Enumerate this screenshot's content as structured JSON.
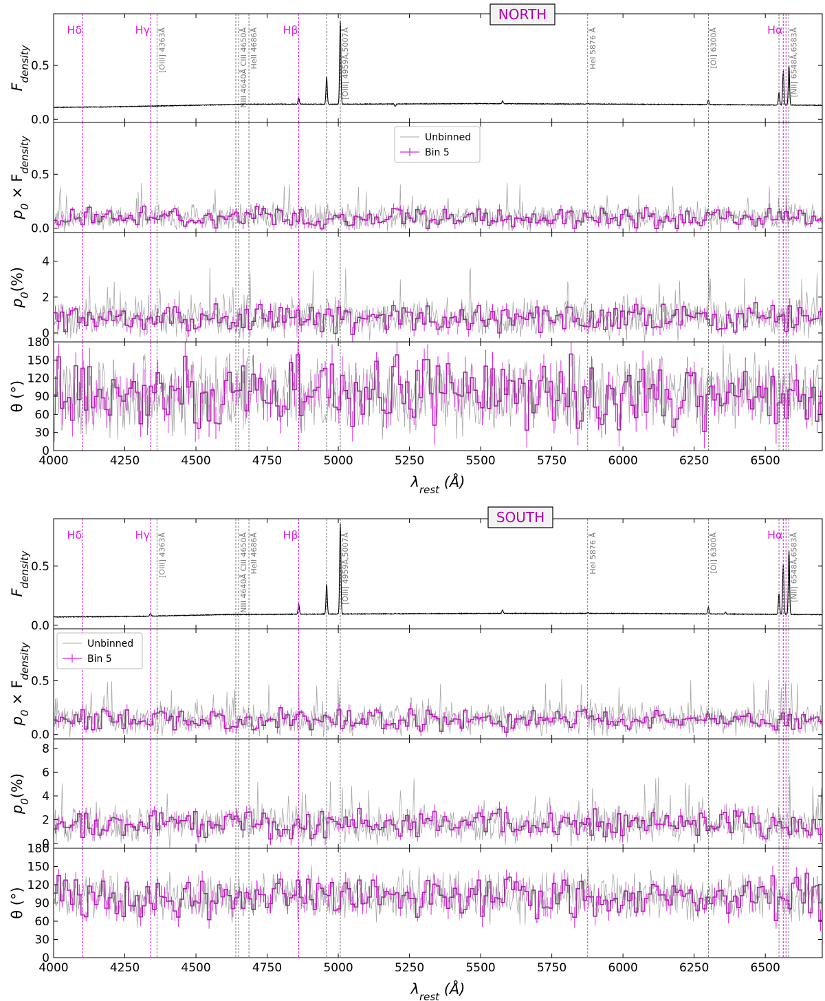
{
  "colors": {
    "flux": "#000000",
    "unbinned": "#a8a8a8",
    "binned": "#e020e0",
    "binned_edge": "#000000",
    "balmer": "#e020e0",
    "emission": "#555555",
    "title": "#b000b0"
  },
  "x_axis": {
    "label": "λ_rest (Å)",
    "range": [
      4000,
      6700
    ],
    "ticks": [
      4000,
      4250,
      4500,
      4750,
      5000,
      5250,
      5500,
      5750,
      6000,
      6250,
      6500
    ],
    "tick_labels": [
      "4000",
      "4250",
      "4500",
      "4750",
      "5000",
      "5250",
      "5500",
      "5750",
      "6000",
      "6250",
      "6500"
    ]
  },
  "balmer_lines": [
    {
      "name": "Hδ",
      "wavelength": 4102
    },
    {
      "name": "Hγ",
      "wavelength": 4341
    },
    {
      "name": "Hβ",
      "wavelength": 4861
    },
    {
      "name": "Hα",
      "wavelength": 6563
    }
  ],
  "emission_lines": [
    {
      "label": "[OIII] 4363Å",
      "wavelengths": [
        4363
      ]
    },
    {
      "label": "NIII 4640Å CIII 4650Å",
      "wavelengths": [
        4640,
        4650
      ]
    },
    {
      "label": "HeII 4686Å",
      "wavelengths": [
        4686
      ]
    },
    {
      "label": "[OIII] 4959Å,5007Å",
      "wavelengths": [
        4959,
        5007
      ]
    },
    {
      "label": "HeI 5876 Å",
      "wavelengths": [
        5876
      ]
    },
    {
      "label": "[OI] 6300Å",
      "wavelengths": [
        6300
      ]
    },
    {
      "label": "[NII] 6548Å,6583Å",
      "wavelengths": [
        6548,
        6583
      ]
    }
  ],
  "legend": {
    "unbinned": "Unbinned",
    "binned": "Bin 5"
  },
  "chart_data": [
    {
      "type": "line",
      "title": "NORTH",
      "x_range": [
        4000,
        6700
      ],
      "panels": [
        {
          "id": "flux",
          "ylabel": "F_density",
          "ylim": [
            -0.03,
            0.98
          ],
          "yticks": [
            0.0,
            0.5
          ],
          "ytick_labels": [
            "0.0",
            "0.5"
          ],
          "series": [
            {
              "name": "",
              "continuum": [
                [
                  4000,
                  0.11
                ],
                [
                  4200,
                  0.115
                ],
                [
                  4400,
                  0.125
                ],
                [
                  4700,
                  0.14
                ],
                [
                  5000,
                  0.14
                ],
                [
                  5500,
                  0.145
                ],
                [
                  6000,
                  0.14
                ],
                [
                  6700,
                  0.13
                ]
              ],
              "peaks": [
                [
                  4861,
                  0.2
                ],
                [
                  4959,
                  0.4
                ],
                [
                  5007,
                  0.92
                ],
                [
                  5200,
                  0.12
                ],
                [
                  5577,
                  0.17
                ],
                [
                  5876,
                  0.15
                ],
                [
                  6300,
                  0.18
                ],
                [
                  6548,
                  0.25
                ],
                [
                  6563,
                  0.45
                ],
                [
                  6583,
                  0.5
                ]
              ]
            }
          ]
        },
        {
          "id": "pflux",
          "ylabel": "p_0 × F_density",
          "ylim": [
            -0.04,
            0.98
          ],
          "yticks": [
            0.0,
            0.5
          ],
          "ytick_labels": [
            "0.0",
            "0.5"
          ],
          "legend_position": "top-center",
          "series": [
            {
              "name": "Unbinned",
              "level": 0.1,
              "spread": 0.1
            },
            {
              "name": "Bin 5",
              "level": 0.1,
              "spread": 0.07
            }
          ]
        },
        {
          "id": "p0",
          "ylabel": "p_0(%)",
          "ylim": [
            -0.5,
            5.6
          ],
          "yticks": [
            0,
            2,
            4
          ],
          "ytick_labels": [
            "0",
            "2",
            "4"
          ],
          "series": [
            {
              "name": "Unbinned",
              "level": 0.8,
              "spread": 0.9
            },
            {
              "name": "Bin 5",
              "level": 0.8,
              "spread": 0.6
            }
          ]
        },
        {
          "id": "theta",
          "ylabel": "θ (°)",
          "ylim": [
            0,
            180
          ],
          "yticks": [
            0,
            30,
            60,
            90,
            120,
            150,
            180
          ],
          "ytick_labels": [
            "0",
            "30",
            "60",
            "90",
            "120",
            "150",
            "180"
          ],
          "series": [
            {
              "name": "Unbinned",
              "level": 95,
              "spread": 55
            },
            {
              "name": "Bin 5",
              "level": 95,
              "spread": 45
            }
          ]
        }
      ]
    },
    {
      "type": "line",
      "title": "SOUTH",
      "x_range": [
        4000,
        6700
      ],
      "panels": [
        {
          "id": "flux",
          "ylabel": "F_density",
          "ylim": [
            -0.03,
            0.9
          ],
          "yticks": [
            0.0,
            0.5
          ],
          "ytick_labels": [
            "0.0",
            "0.5"
          ],
          "series": [
            {
              "name": "",
              "continuum": [
                [
                  4000,
                  0.07
                ],
                [
                  4300,
                  0.075
                ],
                [
                  4600,
                  0.09
                ],
                [
                  5000,
                  0.095
                ],
                [
                  5500,
                  0.1
                ],
                [
                  6000,
                  0.1
                ],
                [
                  6700,
                  0.09
                ]
              ],
              "peaks": [
                [
                  4340,
                  0.1
                ],
                [
                  4861,
                  0.18
                ],
                [
                  4959,
                  0.35
                ],
                [
                  5007,
                  0.86
                ],
                [
                  5200,
                  0.1
                ],
                [
                  5577,
                  0.13
                ],
                [
                  5876,
                  0.11
                ],
                [
                  6300,
                  0.15
                ],
                [
                  6360,
                  0.11
                ],
                [
                  6548,
                  0.27
                ],
                [
                  6563,
                  0.52
                ],
                [
                  6583,
                  0.63
                ]
              ]
            }
          ]
        },
        {
          "id": "pflux",
          "ylabel": "p_0 × F_density",
          "ylim": [
            -0.04,
            0.98
          ],
          "yticks": [
            0.0,
            0.5
          ],
          "ytick_labels": [
            "0.0",
            "0.5"
          ],
          "legend_position": "top-left",
          "series": [
            {
              "name": "Unbinned",
              "level": 0.14,
              "spread": 0.12
            },
            {
              "name": "Bin 5",
              "level": 0.14,
              "spread": 0.08
            }
          ]
        },
        {
          "id": "p0",
          "ylabel": "p_0(%)",
          "ylim": [
            -0.4,
            8.8
          ],
          "yticks": [
            0,
            2,
            4,
            6,
            8
          ],
          "ytick_labels": [
            "0",
            "2",
            "4",
            "6",
            "8"
          ],
          "series": [
            {
              "name": "Unbinned",
              "level": 1.6,
              "spread": 1.3
            },
            {
              "name": "Bin 5",
              "level": 1.6,
              "spread": 0.9
            }
          ]
        },
        {
          "id": "theta",
          "ylabel": "θ (°)",
          "ylim": [
            0,
            180
          ],
          "yticks": [
            0,
            30,
            60,
            90,
            120,
            150,
            180
          ],
          "ytick_labels": [
            "0",
            "30",
            "60",
            "90",
            "120",
            "150",
            "180"
          ],
          "series": [
            {
              "name": "Unbinned",
              "level": 100,
              "spread": 35
            },
            {
              "name": "Bin 5",
              "level": 100,
              "spread": 25
            }
          ]
        }
      ]
    }
  ]
}
